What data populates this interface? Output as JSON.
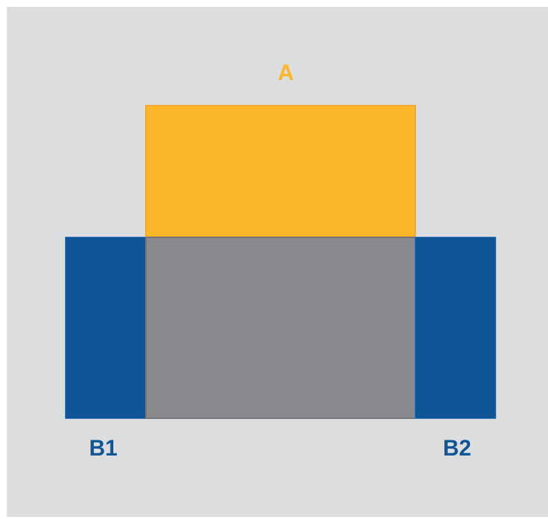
{
  "diagram": {
    "labels": {
      "a": "A",
      "b1": "B1",
      "b2": "B2"
    },
    "colors": {
      "background": "#dcddde",
      "set_a": "#fbb629",
      "set_b": "#0f5597",
      "overlap": "#898a8e"
    }
  }
}
